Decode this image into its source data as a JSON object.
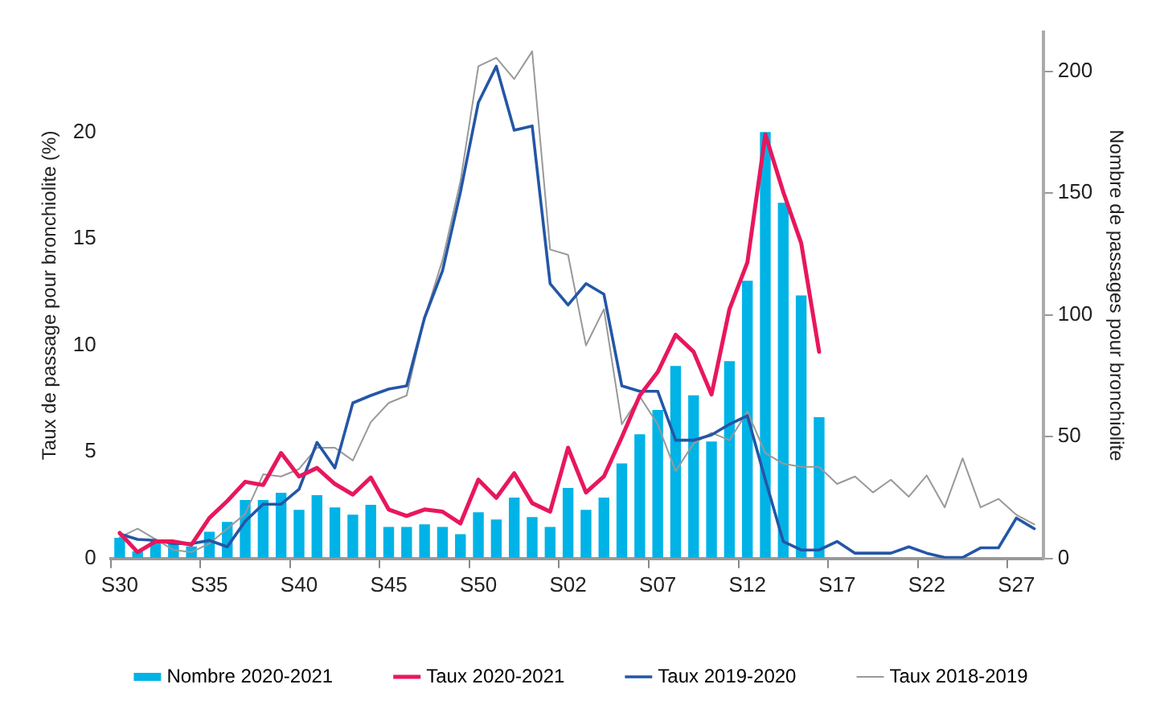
{
  "chart_data": {
    "type": "bar",
    "ylabel": "Taux de passage pour bronchiolite (%)",
    "y2label": "Nombre de passages pour bronchiolite",
    "categories": [
      "S30",
      null,
      null,
      null,
      null,
      "S35",
      null,
      null,
      null,
      null,
      "S40",
      null,
      null,
      null,
      null,
      "S45",
      null,
      null,
      null,
      null,
      "S50",
      null,
      null,
      null,
      null,
      "S02",
      null,
      null,
      null,
      null,
      "S07",
      null,
      null,
      null,
      null,
      "S12",
      null,
      null,
      null,
      null,
      "S17",
      null,
      null,
      null,
      null,
      "S22",
      null,
      null,
      null,
      null,
      "S27",
      null
    ],
    "series": [
      {
        "name": "Nombre 2020-2021",
        "axis": "y2",
        "color": "#00b3e6",
        "values": [
          8.5,
          3,
          7.5,
          6,
          5,
          11,
          15,
          24,
          24,
          27,
          20,
          26,
          21,
          18,
          22,
          13,
          13,
          14,
          13,
          10,
          19,
          16,
          25,
          17,
          13,
          29,
          20,
          25,
          39,
          51,
          61,
          79,
          67,
          48,
          81,
          114,
          175,
          146,
          108,
          58,
          null,
          null,
          null,
          null,
          null,
          null,
          null,
          null,
          null,
          null,
          null,
          null
        ]
      },
      {
        "name": "Taux 2020-2021",
        "type": "line",
        "color": "#e8175d",
        "values": [
          1.2,
          0.3,
          0.8,
          0.8,
          0.65,
          1.9,
          2.7,
          3.6,
          3.45,
          4.95,
          3.85,
          4.25,
          3.5,
          3.0,
          3.8,
          2.3,
          2.0,
          2.3,
          2.2,
          1.65,
          3.7,
          2.85,
          4.0,
          2.6,
          2.2,
          5.2,
          3.1,
          3.85,
          5.7,
          7.65,
          8.75,
          10.5,
          9.7,
          7.7,
          11.7,
          13.9,
          19.9,
          17.2,
          14.8,
          9.7,
          null,
          null,
          null,
          null,
          null,
          null,
          null,
          null,
          null,
          null,
          null,
          null
        ]
      },
      {
        "name": "Taux 2019-2020",
        "type": "line",
        "color": "#2456a6",
        "values": [
          1.15,
          0.9,
          0.85,
          0.7,
          0.7,
          0.85,
          0.55,
          1.75,
          2.55,
          2.55,
          3.25,
          5.45,
          4.25,
          7.3,
          7.65,
          7.95,
          8.1,
          11.3,
          13.5,
          17.2,
          21.4,
          23.1,
          20.1,
          20.3,
          12.9,
          11.9,
          12.9,
          12.4,
          8.1,
          7.85,
          7.85,
          5.55,
          5.55,
          5.8,
          6.3,
          6.7,
          3.7,
          0.8,
          0.4,
          0.4,
          0.8,
          0.25,
          0.25,
          0.25,
          0.55,
          0.25,
          0.05,
          0.05,
          0.5,
          0.5,
          1.9,
          1.4
        ]
      },
      {
        "name": "Taux 2018-2019",
        "type": "line",
        "color": "#999999",
        "values": [
          1.0,
          1.4,
          0.9,
          0.4,
          0.3,
          0.7,
          1.4,
          2.1,
          3.95,
          3.85,
          4.2,
          5.2,
          5.2,
          4.6,
          6.4,
          7.3,
          7.65,
          11.3,
          14.0,
          17.7,
          23.1,
          23.5,
          22.5,
          23.8,
          14.5,
          14.25,
          10.0,
          11.7,
          6.3,
          7.6,
          6.3,
          4.1,
          5.4,
          5.9,
          5.55,
          6.9,
          4.95,
          4.45,
          4.3,
          4.3,
          3.5,
          3.85,
          3.1,
          3.7,
          2.9,
          3.9,
          2.4,
          4.7,
          2.4,
          2.8,
          2.05,
          1.6
        ]
      }
    ],
    "ylim": [
      0,
      24.7
    ],
    "yticks": [
      0,
      5,
      10,
      15,
      20
    ],
    "y2lim": [
      0,
      216
    ],
    "y2ticks": [
      0,
      50,
      100,
      150,
      200
    ],
    "grid": false,
    "legend": "bottom",
    "marker": "none",
    "line_style": "solid"
  }
}
